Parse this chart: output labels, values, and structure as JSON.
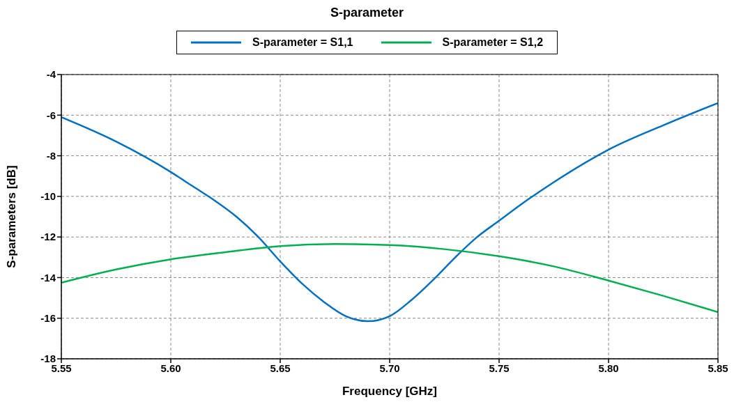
{
  "chart_data": {
    "type": "line",
    "title": "S-parameter",
    "xlabel": "Frequency [GHz]",
    "ylabel": "S-parameters [dB]",
    "xlim": [
      5.55,
      5.85
    ],
    "xticks": [
      {
        "value": 5.55,
        "label": "5.55"
      },
      {
        "value": 5.6,
        "label": "5.60"
      },
      {
        "value": 5.65,
        "label": "5.65"
      },
      {
        "value": 5.7,
        "label": "5.70"
      },
      {
        "value": 5.75,
        "label": "5.75"
      },
      {
        "value": 5.8,
        "label": "5.80"
      },
      {
        "value": 5.85,
        "label": "5.85"
      }
    ],
    "ylim": [
      -18,
      -4
    ],
    "yticks": [
      -18,
      -16,
      -14,
      -12,
      -10,
      -8,
      -6,
      -4
    ],
    "grid": true,
    "legend": "top",
    "marker": "none",
    "line_style": "solid",
    "series": [
      {
        "name": "S-parameter = S1,1",
        "color": "#0070c0",
        "x": [
          5.55,
          5.575,
          5.6,
          5.61,
          5.62,
          5.63,
          5.64,
          5.65,
          5.66,
          5.67,
          5.68,
          5.69,
          5.7,
          5.71,
          5.72,
          5.73,
          5.74,
          5.75,
          5.76,
          5.775,
          5.8,
          5.825,
          5.85
        ],
        "values": [
          -6.1,
          -7.3,
          -8.8,
          -9.5,
          -10.2,
          -11.0,
          -12.0,
          -13.2,
          -14.3,
          -15.2,
          -15.9,
          -16.15,
          -15.9,
          -15.1,
          -14.1,
          -13.0,
          -12.0,
          -11.2,
          -10.4,
          -9.3,
          -7.7,
          -6.5,
          -5.4
        ]
      },
      {
        "name": "S-parameter = S1,2",
        "color": "#00b050",
        "x": [
          5.55,
          5.575,
          5.6,
          5.625,
          5.65,
          5.675,
          5.7,
          5.725,
          5.75,
          5.775,
          5.8,
          5.825,
          5.85
        ],
        "values": [
          -14.25,
          -13.6,
          -13.1,
          -12.75,
          -12.45,
          -12.35,
          -12.4,
          -12.6,
          -12.95,
          -13.45,
          -14.15,
          -14.9,
          -15.7
        ]
      }
    ]
  }
}
